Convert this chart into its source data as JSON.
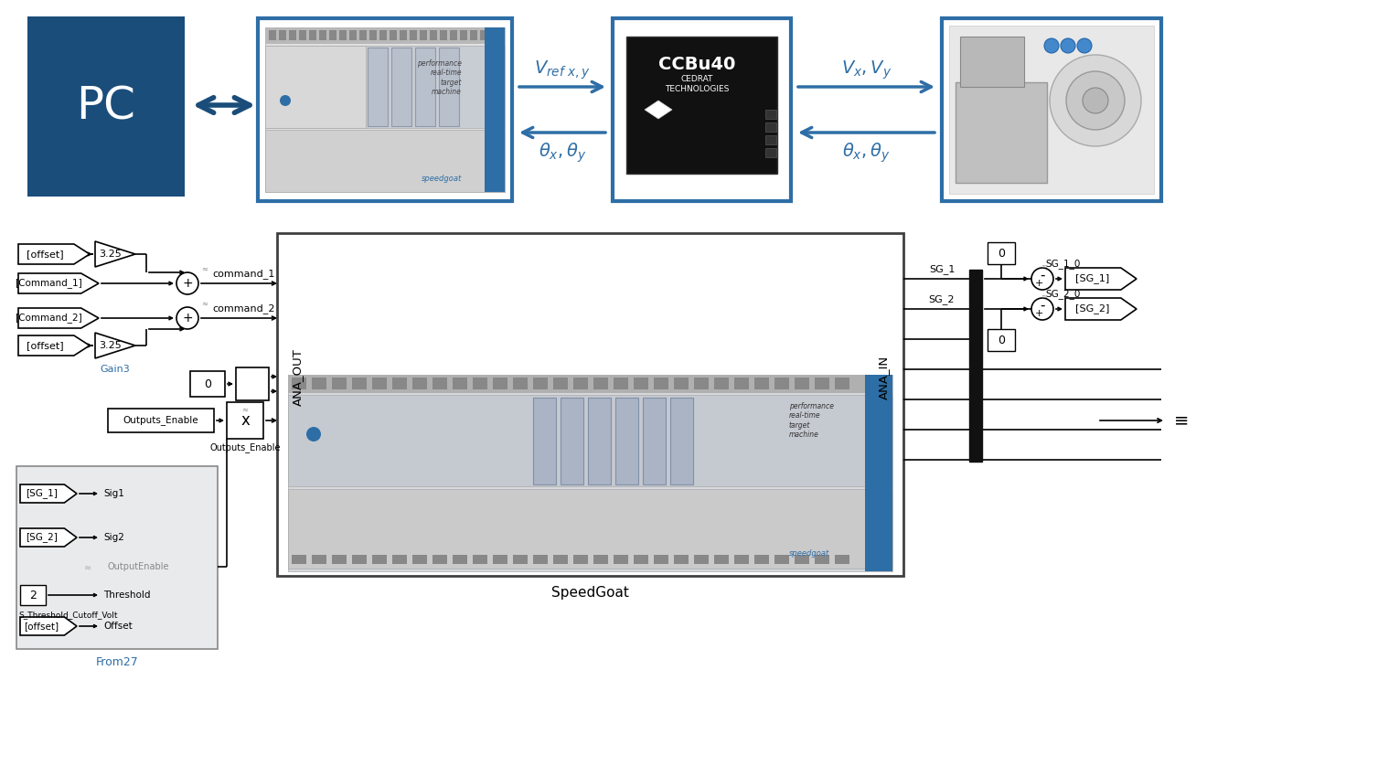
{
  "bg_color": "#ffffff",
  "dark_blue": "#1a4d7a",
  "mid_blue": "#2e6ea6",
  "arrow_blue": "#2e6ea6",
  "pc_bg": "#1a4d7a",
  "pc_label": "PC",
  "speedgoat_label": "SpeedGoat",
  "vref_label": "$V_{ref\\ x,y}$",
  "theta1_label": "$\\theta_x, \\theta_y$",
  "vxy_label": "$V_x, V_y$",
  "theta2_label": "$\\theta_x, \\theta_y$",
  "command1_label": "command_1",
  "command2_label": "command_2",
  "gain3_label": "Gain3",
  "from27_label": "From27"
}
